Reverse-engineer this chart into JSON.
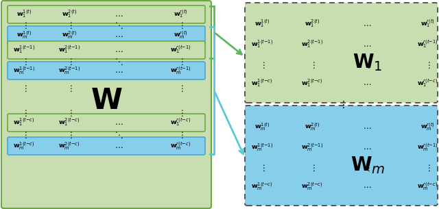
{
  "green_color": "#c8ddb0",
  "blue_color": "#87ceeb",
  "green_border": "#6aaa3a",
  "blue_border": "#4aa8d0",
  "arrow_green": "#5cb85c",
  "arrow_blue": "#5bc8d8",
  "bg_color": "#ffffff",
  "dashed_border_color": "#666666"
}
